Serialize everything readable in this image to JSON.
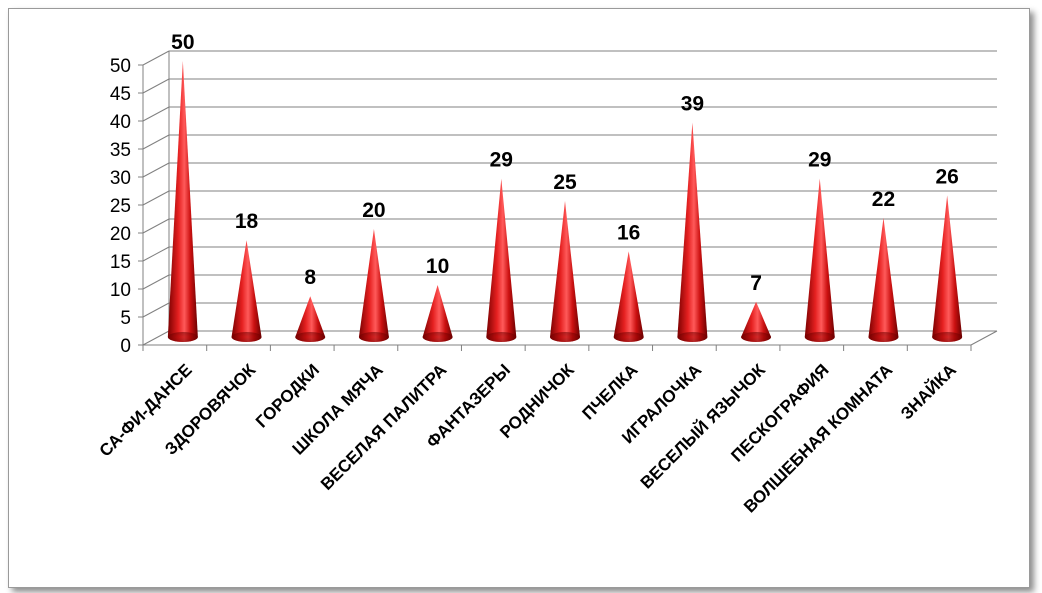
{
  "chart_data": {
    "type": "bar",
    "bar_shape": "cone",
    "categories": [
      "СА-ФИ-ДАНСЕ",
      "ЗДОРОВЯЧОК",
      "ГОРОДКИ",
      "ШКОЛА МЯЧА",
      "ВЕСЕЛАЯ ПАЛИТРА",
      "ФАНТАЗЕРЫ",
      "РОДНИЧОК",
      "ПЧЕЛКА",
      "ИГРАЛОЧКА",
      "ВЕСЕЛЫЙ ЯЗЫЧОК",
      "ПЕСКОГРАФИЯ",
      "ВОЛШЕБНАЯ КОМНАТА",
      "ЗНАЙКА"
    ],
    "values": [
      50,
      18,
      8,
      20,
      10,
      29,
      25,
      16,
      39,
      7,
      29,
      22,
      26
    ],
    "ylim": [
      0,
      50
    ],
    "yticks": [
      0,
      5,
      10,
      15,
      20,
      25,
      30,
      35,
      40,
      45,
      50
    ],
    "grid": true,
    "data_labels": true,
    "colors": {
      "bar": "#cc1111",
      "bar_dark": "#7a0000",
      "bar_light": "#ff5a5a",
      "grid": "#808080"
    }
  }
}
